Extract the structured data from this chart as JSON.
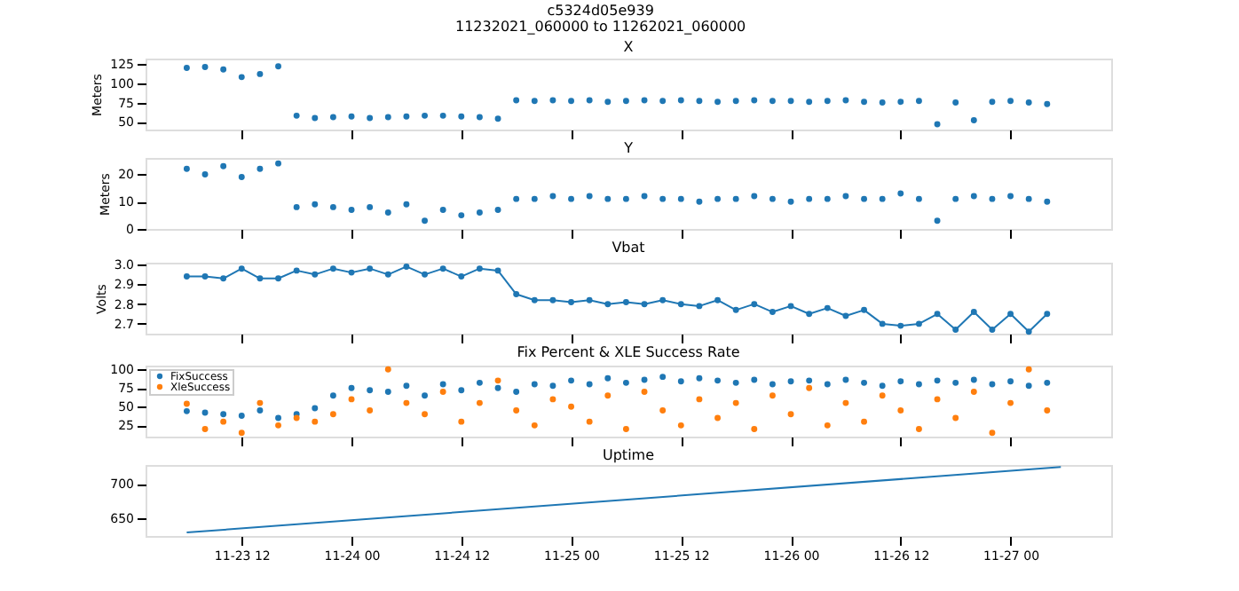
{
  "chart_data": [
    {
      "type": "other",
      "title": "c5324d05e939",
      "subtitle": "11232021_060000 to 11262021_060000"
    },
    {
      "type": "scatter",
      "title": "X",
      "ylabel": "Meters",
      "marker": "circle",
      "tick_labels": "y",
      "xlim": [
        "2021-11-23T01:30",
        "2021-11-27T11:00"
      ],
      "xticks": [
        {
          "value": "2021-11-23T12:00",
          "label": null
        },
        {
          "value": "2021-11-24T00:00",
          "label": null
        },
        {
          "value": "2021-11-24T12:00",
          "label": null
        },
        {
          "value": "2021-11-25T00:00",
          "label": null
        },
        {
          "value": "2021-11-25T12:00",
          "label": null
        },
        {
          "value": "2021-11-26T00:00",
          "label": null
        },
        {
          "value": "2021-11-26T12:00",
          "label": null
        },
        {
          "value": "2021-11-27T00:00",
          "label": null
        }
      ],
      "ylim": [
        40,
        132
      ],
      "yticks": [
        50,
        75,
        100,
        125
      ],
      "x": [
        "2021-11-23T06:00",
        "2021-11-23T08:00",
        "2021-11-23T10:00",
        "2021-11-23T12:00",
        "2021-11-23T14:00",
        "2021-11-23T16:00",
        "2021-11-23T18:00",
        "2021-11-23T20:00",
        "2021-11-23T22:00",
        "2021-11-24T00:00",
        "2021-11-24T02:00",
        "2021-11-24T04:00",
        "2021-11-24T06:00",
        "2021-11-24T08:00",
        "2021-11-24T10:00",
        "2021-11-24T12:00",
        "2021-11-24T14:00",
        "2021-11-24T16:00",
        "2021-11-24T18:00",
        "2021-11-24T20:00",
        "2021-11-24T22:00",
        "2021-11-25T00:00",
        "2021-11-25T02:00",
        "2021-11-25T04:00",
        "2021-11-25T06:00",
        "2021-11-25T08:00",
        "2021-11-25T10:00",
        "2021-11-25T12:00",
        "2021-11-25T14:00",
        "2021-11-25T16:00",
        "2021-11-25T18:00",
        "2021-11-25T20:00",
        "2021-11-25T22:00",
        "2021-11-26T00:00",
        "2021-11-26T02:00",
        "2021-11-26T04:00",
        "2021-11-26T06:00",
        "2021-11-26T08:00",
        "2021-11-26T10:00",
        "2021-11-26T12:00",
        "2021-11-26T14:00",
        "2021-11-26T16:00",
        "2021-11-26T18:00",
        "2021-11-26T20:00",
        "2021-11-26T22:00",
        "2021-11-27T00:00",
        "2021-11-27T02:00",
        "2021-11-27T04:00"
      ],
      "series": [
        {
          "color": "#1f77b4",
          "values": [
            120,
            121,
            118,
            108,
            112,
            122,
            58,
            55,
            56,
            57,
            55,
            56,
            57,
            58,
            58,
            57,
            56,
            54,
            78,
            77,
            78,
            77,
            78,
            76,
            77,
            78,
            77,
            78,
            77,
            76,
            77,
            78,
            77,
            77,
            76,
            77,
            78,
            76,
            75,
            76,
            77,
            47,
            75,
            52,
            76,
            77,
            75,
            73
          ]
        }
      ]
    },
    {
      "type": "scatter",
      "title": "Y",
      "ylabel": "Meters",
      "marker": "circle",
      "tick_labels": "y",
      "xlim": [
        "2021-11-23T01:30",
        "2021-11-27T11:00"
      ],
      "xticks": [
        {
          "value": "2021-11-23T12:00",
          "label": null
        },
        {
          "value": "2021-11-24T00:00",
          "label": null
        },
        {
          "value": "2021-11-24T12:00",
          "label": null
        },
        {
          "value": "2021-11-25T00:00",
          "label": null
        },
        {
          "value": "2021-11-25T12:00",
          "label": null
        },
        {
          "value": "2021-11-26T00:00",
          "label": null
        },
        {
          "value": "2021-11-26T12:00",
          "label": null
        },
        {
          "value": "2021-11-27T00:00",
          "label": null
        }
      ],
      "ylim": [
        0,
        26
      ],
      "yticks": [
        0,
        10,
        20
      ],
      "x": [
        "2021-11-23T06:00",
        "2021-11-23T08:00",
        "2021-11-23T10:00",
        "2021-11-23T12:00",
        "2021-11-23T14:00",
        "2021-11-23T16:00",
        "2021-11-23T18:00",
        "2021-11-23T20:00",
        "2021-11-23T22:00",
        "2021-11-24T00:00",
        "2021-11-24T02:00",
        "2021-11-24T04:00",
        "2021-11-24T06:00",
        "2021-11-24T08:00",
        "2021-11-24T10:00",
        "2021-11-24T12:00",
        "2021-11-24T14:00",
        "2021-11-24T16:00",
        "2021-11-24T18:00",
        "2021-11-24T20:00",
        "2021-11-24T22:00",
        "2021-11-25T00:00",
        "2021-11-25T02:00",
        "2021-11-25T04:00",
        "2021-11-25T06:00",
        "2021-11-25T08:00",
        "2021-11-25T10:00",
        "2021-11-25T12:00",
        "2021-11-25T14:00",
        "2021-11-25T16:00",
        "2021-11-25T18:00",
        "2021-11-25T20:00",
        "2021-11-25T22:00",
        "2021-11-26T00:00",
        "2021-11-26T02:00",
        "2021-11-26T04:00",
        "2021-11-26T06:00",
        "2021-11-26T08:00",
        "2021-11-26T10:00",
        "2021-11-26T12:00",
        "2021-11-26T14:00",
        "2021-11-26T16:00",
        "2021-11-26T18:00",
        "2021-11-26T20:00",
        "2021-11-26T22:00",
        "2021-11-27T00:00",
        "2021-11-27T02:00",
        "2021-11-27T04:00"
      ],
      "series": [
        {
          "color": "#1f77b4",
          "values": [
            22,
            20,
            23,
            19,
            22,
            24,
            8,
            9,
            8,
            7,
            8,
            6,
            9,
            3,
            7,
            5,
            6,
            7,
            11,
            11,
            12,
            11,
            12,
            11,
            11,
            12,
            11,
            11,
            10,
            11,
            11,
            12,
            11,
            10,
            11,
            11,
            12,
            11,
            11,
            13,
            11,
            3,
            11,
            12,
            11,
            12,
            11,
            10
          ]
        }
      ]
    },
    {
      "type": "line",
      "title": "Vbat",
      "ylabel": "Volts",
      "marker": "circle",
      "tick_labels": "y",
      "xlim": [
        "2021-11-23T01:30",
        "2021-11-27T11:00"
      ],
      "xticks": [
        {
          "value": "2021-11-23T12:00",
          "label": null
        },
        {
          "value": "2021-11-24T00:00",
          "label": null
        },
        {
          "value": "2021-11-24T12:00",
          "label": null
        },
        {
          "value": "2021-11-25T00:00",
          "label": null
        },
        {
          "value": "2021-11-25T12:00",
          "label": null
        },
        {
          "value": "2021-11-26T00:00",
          "label": null
        },
        {
          "value": "2021-11-26T12:00",
          "label": null
        },
        {
          "value": "2021-11-27T00:00",
          "label": null
        }
      ],
      "ylim": [
        2.65,
        3.01
      ],
      "yticks": [
        2.7,
        2.8,
        2.9,
        {
          "value": 3.0,
          "label": "3.0"
        }
      ],
      "x": [
        "2021-11-23T06:00",
        "2021-11-23T08:00",
        "2021-11-23T10:00",
        "2021-11-23T12:00",
        "2021-11-23T14:00",
        "2021-11-23T16:00",
        "2021-11-23T18:00",
        "2021-11-23T20:00",
        "2021-11-23T22:00",
        "2021-11-24T00:00",
        "2021-11-24T02:00",
        "2021-11-24T04:00",
        "2021-11-24T06:00",
        "2021-11-24T08:00",
        "2021-11-24T10:00",
        "2021-11-24T12:00",
        "2021-11-24T14:00",
        "2021-11-24T16:00",
        "2021-11-24T18:00",
        "2021-11-24T20:00",
        "2021-11-24T22:00",
        "2021-11-25T00:00",
        "2021-11-25T02:00",
        "2021-11-25T04:00",
        "2021-11-25T06:00",
        "2021-11-25T08:00",
        "2021-11-25T10:00",
        "2021-11-25T12:00",
        "2021-11-25T14:00",
        "2021-11-25T16:00",
        "2021-11-25T18:00",
        "2021-11-25T20:00",
        "2021-11-25T22:00",
        "2021-11-26T00:00",
        "2021-11-26T02:00",
        "2021-11-26T04:00",
        "2021-11-26T06:00",
        "2021-11-26T08:00",
        "2021-11-26T10:00",
        "2021-11-26T12:00",
        "2021-11-26T14:00",
        "2021-11-26T16:00",
        "2021-11-26T18:00",
        "2021-11-26T20:00",
        "2021-11-26T22:00",
        "2021-11-27T00:00",
        "2021-11-27T02:00",
        "2021-11-27T04:00"
      ],
      "series": [
        {
          "color": "#1f77b4",
          "values": [
            2.94,
            2.94,
            2.93,
            2.98,
            2.93,
            2.93,
            2.97,
            2.95,
            2.98,
            2.96,
            2.98,
            2.95,
            2.99,
            2.95,
            2.98,
            2.94,
            2.98,
            2.97,
            2.85,
            2.82,
            2.82,
            2.81,
            2.82,
            2.8,
            2.81,
            2.8,
            2.82,
            2.8,
            2.79,
            2.82,
            2.77,
            2.8,
            2.76,
            2.79,
            2.75,
            2.78,
            2.74,
            2.77,
            2.7,
            2.69,
            2.7,
            2.75,
            2.67,
            2.76,
            2.67,
            2.75,
            2.66,
            2.75
          ]
        }
      ]
    },
    {
      "type": "scatter",
      "title": "Fix Percent & XLE Success Rate",
      "marker": "circle",
      "tick_labels": "y",
      "legend": "top left",
      "xlim": [
        "2021-11-23T01:30",
        "2021-11-27T11:00"
      ],
      "xticks": [
        {
          "value": "2021-11-23T12:00",
          "label": null
        },
        {
          "value": "2021-11-24T00:00",
          "label": null
        },
        {
          "value": "2021-11-24T12:00",
          "label": null
        },
        {
          "value": "2021-11-25T00:00",
          "label": null
        },
        {
          "value": "2021-11-25T12:00",
          "label": null
        },
        {
          "value": "2021-11-26T00:00",
          "label": null
        },
        {
          "value": "2021-11-26T12:00",
          "label": null
        },
        {
          "value": "2021-11-27T00:00",
          "label": null
        }
      ],
      "ylim": [
        10,
        105
      ],
      "yticks": [
        25,
        50,
        75,
        100
      ],
      "x": [
        "2021-11-23T06:00",
        "2021-11-23T08:00",
        "2021-11-23T10:00",
        "2021-11-23T12:00",
        "2021-11-23T14:00",
        "2021-11-23T16:00",
        "2021-11-23T18:00",
        "2021-11-23T20:00",
        "2021-11-23T22:00",
        "2021-11-24T00:00",
        "2021-11-24T02:00",
        "2021-11-24T04:00",
        "2021-11-24T06:00",
        "2021-11-24T08:00",
        "2021-11-24T10:00",
        "2021-11-24T12:00",
        "2021-11-24T14:00",
        "2021-11-24T16:00",
        "2021-11-24T18:00",
        "2021-11-24T20:00",
        "2021-11-24T22:00",
        "2021-11-25T00:00",
        "2021-11-25T02:00",
        "2021-11-25T04:00",
        "2021-11-25T06:00",
        "2021-11-25T08:00",
        "2021-11-25T10:00",
        "2021-11-25T12:00",
        "2021-11-25T14:00",
        "2021-11-25T16:00",
        "2021-11-25T18:00",
        "2021-11-25T20:00",
        "2021-11-25T22:00",
        "2021-11-26T00:00",
        "2021-11-26T02:00",
        "2021-11-26T04:00",
        "2021-11-26T06:00",
        "2021-11-26T08:00",
        "2021-11-26T10:00",
        "2021-11-26T12:00",
        "2021-11-26T14:00",
        "2021-11-26T16:00",
        "2021-11-26T18:00",
        "2021-11-26T20:00",
        "2021-11-26T22:00",
        "2021-11-27T00:00",
        "2021-11-27T02:00",
        "2021-11-27T04:00"
      ],
      "series": [
        {
          "name": "FixSuccess",
          "color": "#1f77b4",
          "values": [
            44,
            42,
            40,
            38,
            45,
            35,
            40,
            48,
            65,
            75,
            72,
            70,
            78,
            65,
            80,
            72,
            82,
            75,
            70,
            80,
            78,
            85,
            80,
            88,
            82,
            86,
            90,
            84,
            88,
            85,
            82,
            86,
            80,
            84,
            85,
            80,
            86,
            82,
            78,
            84,
            80,
            85,
            82,
            86,
            80,
            84,
            78,
            82
          ]
        },
        {
          "name": "XleSuccess",
          "color": "#ff7f0e",
          "values": [
            54,
            20,
            30,
            15,
            55,
            25,
            35,
            30,
            40,
            60,
            45,
            100,
            55,
            40,
            70,
            30,
            55,
            85,
            45,
            25,
            60,
            50,
            30,
            65,
            20,
            70,
            45,
            25,
            60,
            35,
            55,
            20,
            65,
            40,
            75,
            25,
            55,
            30,
            65,
            45,
            20,
            60,
            35,
            70,
            15,
            55,
            100,
            45
          ]
        }
      ]
    },
    {
      "type": "line",
      "title": "Uptime",
      "xlim": [
        "2021-11-23T01:30",
        "2021-11-27T11:00"
      ],
      "xticks": [
        {
          "value": "2021-11-23T12:00",
          "label": "11-23 12"
        },
        {
          "value": "2021-11-24T00:00",
          "label": "11-24 00"
        },
        {
          "value": "2021-11-24T12:00",
          "label": "11-24 12"
        },
        {
          "value": "2021-11-25T00:00",
          "label": "11-25 00"
        },
        {
          "value": "2021-11-25T12:00",
          "label": "11-25 12"
        },
        {
          "value": "2021-11-26T00:00",
          "label": "11-26 00"
        },
        {
          "value": "2021-11-26T12:00",
          "label": "11-26 12"
        },
        {
          "value": "2021-11-27T00:00",
          "label": "11-27 00"
        }
      ],
      "ylim": [
        625,
        727
      ],
      "yticks": [
        650,
        700
      ],
      "x": [
        "2021-11-23T06:00",
        "2021-11-27T05:30"
      ],
      "series": [
        {
          "color": "#1f77b4",
          "values": [
            630,
            724
          ]
        }
      ]
    }
  ]
}
